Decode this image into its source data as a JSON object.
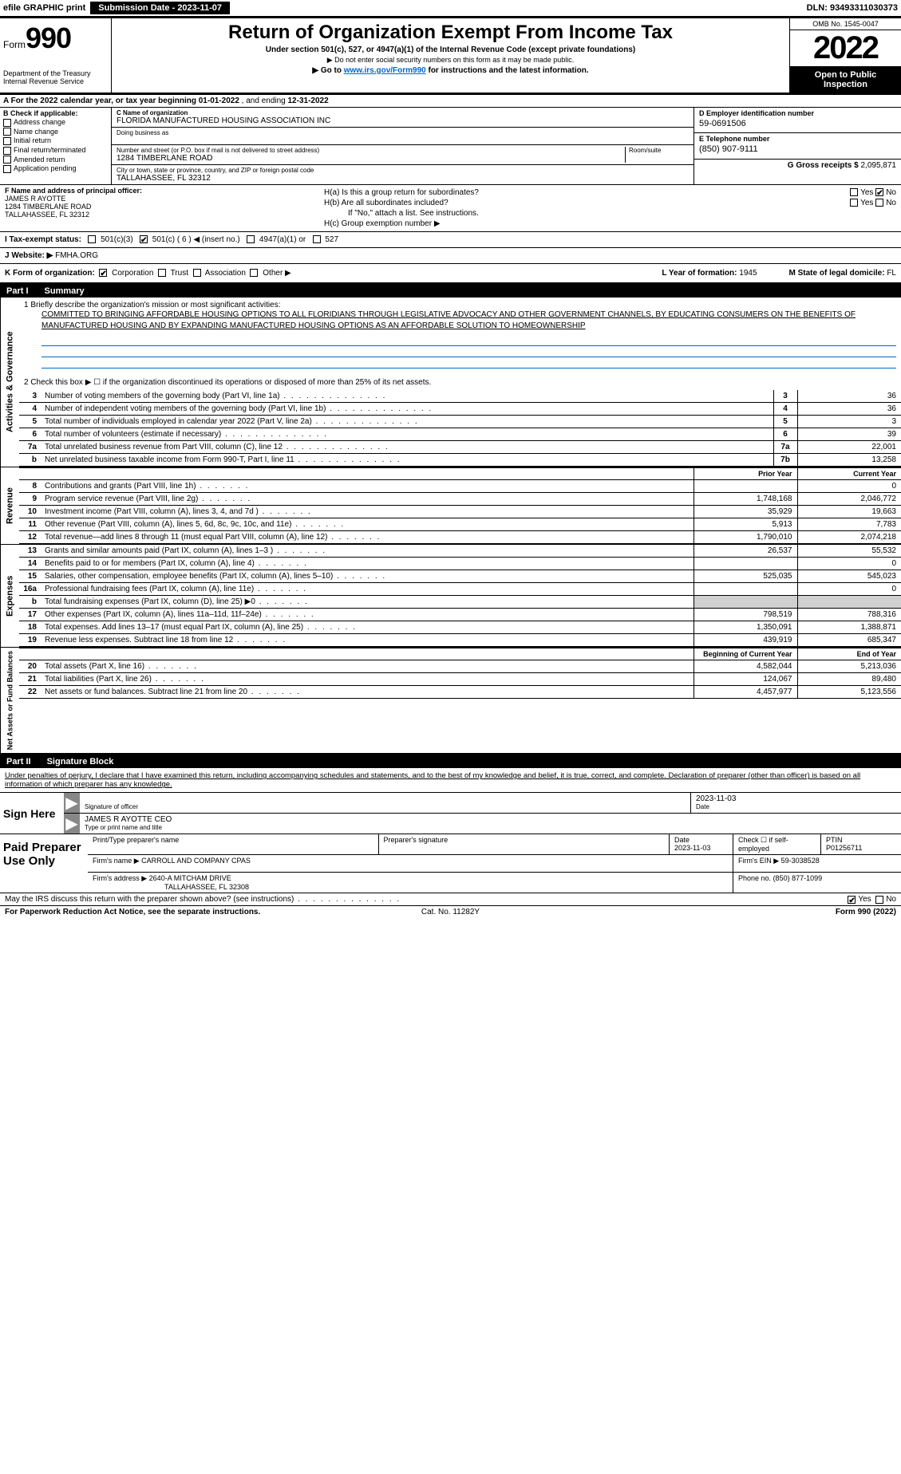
{
  "topbar": {
    "efile": "efile GRAPHIC print",
    "submission": "Submission Date - 2023-11-07",
    "dln": "DLN: 93493311030373"
  },
  "header": {
    "form_prefix": "Form",
    "form_num": "990",
    "title": "Return of Organization Exempt From Income Tax",
    "sub1": "Under section 501(c), 527, or 4947(a)(1) of the Internal Revenue Code (except private foundations)",
    "sub2": "▶ Do not enter social security numbers on this form as it may be made public.",
    "sub3_pre": "▶ Go to ",
    "sub3_link": "www.irs.gov/Form990",
    "sub3_post": " for instructions and the latest information.",
    "dept": "Department of the Treasury\nInternal Revenue Service",
    "omb": "OMB No. 1545-0047",
    "year": "2022",
    "inspection": "Open to Public Inspection"
  },
  "row_a": {
    "text_pre": "A For the 2022 calendar year, or tax year beginning ",
    "begin": "01-01-2022",
    "mid": " , and ending ",
    "end": "12-31-2022"
  },
  "col_b": {
    "hdr": "B Check if applicable:",
    "items": [
      "Address change",
      "Name change",
      "Initial return",
      "Final return/terminated",
      "Amended return",
      "Application pending"
    ]
  },
  "col_c": {
    "name_lbl": "C Name of organization",
    "name": "FLORIDA MANUFACTURED HOUSING ASSOCIATION INC",
    "dba_lbl": "Doing business as",
    "dba": "",
    "addr_lbl": "Number and street (or P.O. box if mail is not delivered to street address)",
    "addr": "1284 TIMBERLANE ROAD",
    "room_lbl": "Room/suite",
    "city_lbl": "City or town, state or province, country, and ZIP or foreign postal code",
    "city": "TALLAHASSEE, FL  32312"
  },
  "col_d": {
    "ein_lbl": "D Employer identification number",
    "ein": "59-0691506",
    "tel_lbl": "E Telephone number",
    "tel": "(850) 907-9111",
    "gross_lbl": "G Gross receipts $",
    "gross": "2,095,871"
  },
  "col_f": {
    "lbl": "F Name and address of principal officer:",
    "name": "JAMES R AYOTTE",
    "addr1": "1284 TIMBERLANE ROAD",
    "addr2": "TALLAHASSEE, FL  32312"
  },
  "col_h": {
    "ha": "H(a)  Is this a group return for subordinates?",
    "hb": "H(b)  Are all subordinates included?",
    "hb_note": "If \"No,\" attach a list. See instructions.",
    "hc": "H(c)  Group exemption number ▶",
    "yes": "Yes",
    "no": "No"
  },
  "row_i": {
    "lbl": "I  Tax-exempt status:",
    "opts": [
      "501(c)(3)",
      "501(c) ( 6 ) ◀ (insert no.)",
      "4947(a)(1) or",
      "527"
    ]
  },
  "row_j": {
    "lbl": "J  Website: ▶",
    "val": " FMHA.ORG"
  },
  "row_k": {
    "lbl": "K Form of organization:",
    "opts": [
      "Corporation",
      "Trust",
      "Association",
      "Other ▶"
    ],
    "l_lbl": "L Year of formation:",
    "l_val": "1945",
    "m_lbl": "M State of legal domicile:",
    "m_val": "FL"
  },
  "part1": {
    "hdr_pt": "Part I",
    "hdr_title": "Summary",
    "line1_lbl": "1  Briefly describe the organization's mission or most significant activities:",
    "mission": "COMMITTED TO BRINGING AFFORDABLE HOUSING OPTIONS TO ALL FLORIDIANS THROUGH LEGISLATIVE ADVOCACY AND OTHER GOVERNMENT CHANNELS, BY EDUCATING CONSUMERS ON THE BENEFITS OF MANUFACTURED HOUSING AND BY EXPANDING MANUFACTURED HOUSING OPTIONS AS AN AFFORDABLE SOLUTION TO HOMEOWNERSHIP",
    "line2": "2  Check this box ▶ ☐  if the organization discontinued its operations or disposed of more than 25% of its net assets.",
    "gov_rows": [
      {
        "n": "3",
        "d": "Number of voting members of the governing body (Part VI, line 1a)",
        "r": "3",
        "v": "36"
      },
      {
        "n": "4",
        "d": "Number of independent voting members of the governing body (Part VI, line 1b)",
        "r": "4",
        "v": "36"
      },
      {
        "n": "5",
        "d": "Total number of individuals employed in calendar year 2022 (Part V, line 2a)",
        "r": "5",
        "v": "3"
      },
      {
        "n": "6",
        "d": "Total number of volunteers (estimate if necessary)",
        "r": "6",
        "v": "39"
      },
      {
        "n": "7a",
        "d": "Total unrelated business revenue from Part VIII, column (C), line 12",
        "r": "7a",
        "v": "22,001"
      },
      {
        "n": "b",
        "d": "Net unrelated business taxable income from Form 990-T, Part I, line 11",
        "r": "7b",
        "v": "13,258"
      }
    ],
    "prior_hdr": "Prior Year",
    "current_hdr": "Current Year",
    "rev_rows": [
      {
        "n": "8",
        "d": "Contributions and grants (Part VIII, line 1h)",
        "p": "",
        "c": "0"
      },
      {
        "n": "9",
        "d": "Program service revenue (Part VIII, line 2g)",
        "p": "1,748,168",
        "c": "2,046,772"
      },
      {
        "n": "10",
        "d": "Investment income (Part VIII, column (A), lines 3, 4, and 7d )",
        "p": "35,929",
        "c": "19,663"
      },
      {
        "n": "11",
        "d": "Other revenue (Part VIII, column (A), lines 5, 6d, 8c, 9c, 10c, and 11e)",
        "p": "5,913",
        "c": "7,783"
      },
      {
        "n": "12",
        "d": "Total revenue—add lines 8 through 11 (must equal Part VIII, column (A), line 12)",
        "p": "1,790,010",
        "c": "2,074,218"
      }
    ],
    "exp_rows": [
      {
        "n": "13",
        "d": "Grants and similar amounts paid (Part IX, column (A), lines 1–3 )",
        "p": "26,537",
        "c": "55,532"
      },
      {
        "n": "14",
        "d": "Benefits paid to or for members (Part IX, column (A), line 4)",
        "p": "",
        "c": "0"
      },
      {
        "n": "15",
        "d": "Salaries, other compensation, employee benefits (Part IX, column (A), lines 5–10)",
        "p": "525,035",
        "c": "545,023"
      },
      {
        "n": "16a",
        "d": "Professional fundraising fees (Part IX, column (A), line 11e)",
        "p": "",
        "c": "0"
      },
      {
        "n": "b",
        "d": "Total fundraising expenses (Part IX, column (D), line 25) ▶0",
        "p": "shade",
        "c": "shade"
      },
      {
        "n": "17",
        "d": "Other expenses (Part IX, column (A), lines 11a–11d, 11f–24e)",
        "p": "798,519",
        "c": "788,316"
      },
      {
        "n": "18",
        "d": "Total expenses. Add lines 13–17 (must equal Part IX, column (A), line 25)",
        "p": "1,350,091",
        "c": "1,388,871"
      },
      {
        "n": "19",
        "d": "Revenue less expenses. Subtract line 18 from line 12",
        "p": "439,919",
        "c": "685,347"
      }
    ],
    "boy_hdr": "Beginning of Current Year",
    "eoy_hdr": "End of Year",
    "na_rows": [
      {
        "n": "20",
        "d": "Total assets (Part X, line 16)",
        "p": "4,582,044",
        "c": "5,213,036"
      },
      {
        "n": "21",
        "d": "Total liabilities (Part X, line 26)",
        "p": "124,067",
        "c": "89,480"
      },
      {
        "n": "22",
        "d": "Net assets or fund balances. Subtract line 21 from line 20",
        "p": "4,457,977",
        "c": "5,123,556"
      }
    ]
  },
  "part2": {
    "hdr_pt": "Part II",
    "hdr_title": "Signature Block",
    "disclaimer": "Under penalties of perjury, I declare that I have examined this return, including accompanying schedules and statements, and to the best of my knowledge and belief, it is true, correct, and complete. Declaration of preparer (other than officer) is based on all information of which preparer has any knowledge.",
    "sign_here": "Sign Here",
    "sig_officer_lbl": "Signature of officer",
    "sig_date": "2023-11-03",
    "sig_date_lbl": "Date",
    "sig_name": "JAMES R AYOTTE  CEO",
    "sig_name_lbl": "Type or print name and title",
    "paid_lbl": "Paid Preparer Use Only",
    "prep_name_lbl": "Print/Type preparer's name",
    "prep_sig_lbl": "Preparer's signature",
    "prep_date_lbl": "Date",
    "prep_date": "2023-11-03",
    "prep_check_lbl": "Check ☐ if self-employed",
    "ptin_lbl": "PTIN",
    "ptin": "P01256711",
    "firm_name_lbl": "Firm's name    ▶",
    "firm_name": "CARROLL AND COMPANY CPAS",
    "firm_ein_lbl": "Firm's EIN ▶",
    "firm_ein": "59-3038528",
    "firm_addr_lbl": "Firm's address ▶",
    "firm_addr1": "2640-A MITCHAM DRIVE",
    "firm_addr2": "TALLAHASSEE, FL  32308",
    "firm_phone_lbl": "Phone no.",
    "firm_phone": "(850) 877-1099",
    "discuss": "May the IRS discuss this return with the preparer shown above? (see instructions)",
    "yes": "Yes",
    "no": "No"
  },
  "footer": {
    "left": "For Paperwork Reduction Act Notice, see the separate instructions.",
    "mid": "Cat. No. 11282Y",
    "right": "Form 990 (2022)"
  },
  "vtabs": {
    "gov": "Activities & Governance",
    "rev": "Revenue",
    "exp": "Expenses",
    "na": "Net Assets or Fund Balances"
  }
}
